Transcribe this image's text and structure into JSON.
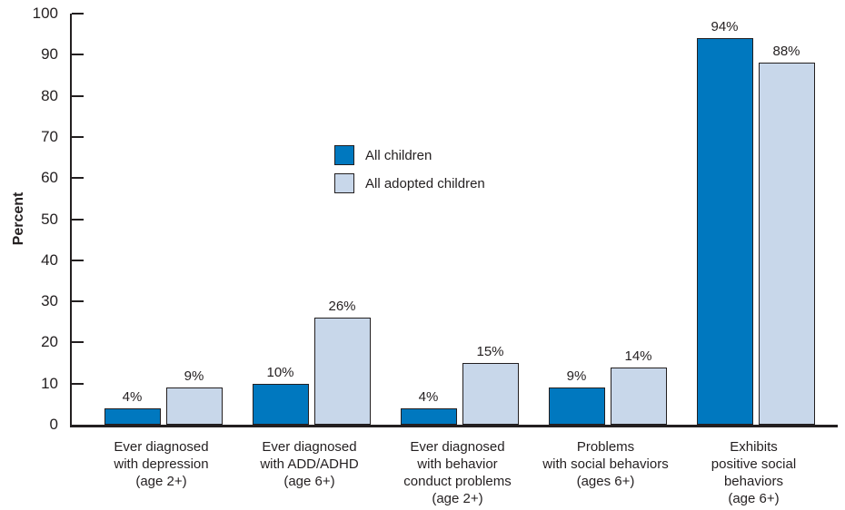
{
  "chart_data": {
    "type": "bar",
    "title": "",
    "xlabel": "",
    "ylabel": "Percent",
    "ylim": [
      0,
      100
    ],
    "ytick_step": 10,
    "grid": false,
    "legend_position": "upper-middle-left-of-plot",
    "value_label_format": "{v}%",
    "categories": [
      "Ever diagnosed\nwith depression\n(age 2+)",
      "Ever diagnosed\nwith ADD/ADHD\n(age 6+)",
      "Ever diagnosed\nwith behavior\nconduct problems\n(age 2+)",
      "Problems\nwith social behaviors\n(ages 6+)",
      "Exhibits\npositive social\nbehaviors\n(age 6+)"
    ],
    "series": [
      {
        "name": "All children",
        "color": "#0078BF",
        "values": [
          4,
          10,
          4,
          9,
          94
        ]
      },
      {
        "name": "All adopted children",
        "color": "#C8D7EA",
        "values": [
          9,
          26,
          15,
          14,
          88
        ]
      }
    ]
  },
  "colors": {
    "background": "#ffffff",
    "axis": "#231f20",
    "bar_outline": "#231f20",
    "text": "#231f20",
    "series_all_children": "#0078BF",
    "series_all_adopted_children": "#C8D7EA"
  }
}
